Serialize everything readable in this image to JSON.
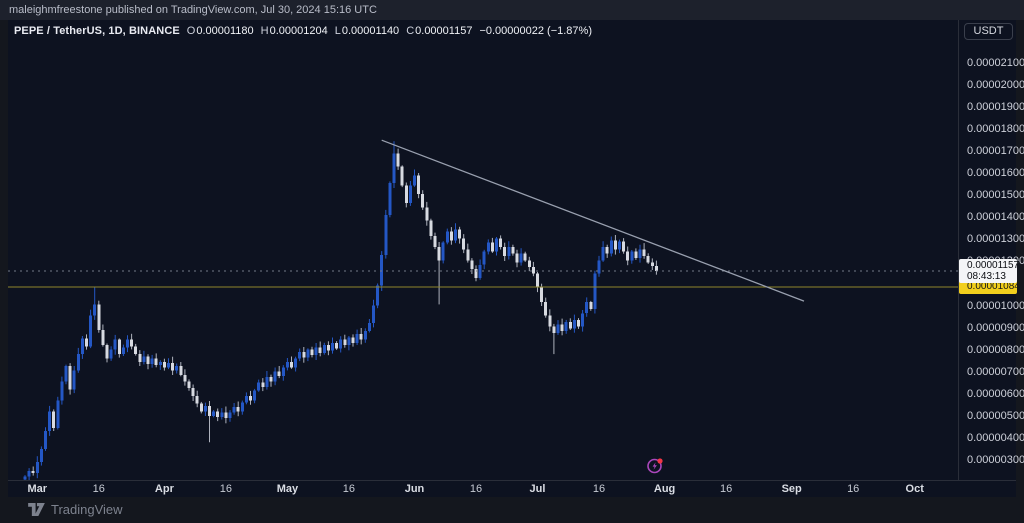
{
  "top_bar": {
    "attribution": "maleighmfreestone published on TradingView.com, Jul 30, 2024 15:16 UTC"
  },
  "header": {
    "symbol_title": "PEPE / TetherUS, 1D, BINANCE",
    "fields": [
      {
        "label": "O",
        "value": "0.00001180"
      },
      {
        "label": "H",
        "value": "0.00001204"
      },
      {
        "label": "L",
        "value": "0.00001140"
      },
      {
        "label": "C",
        "value": "0.00001157"
      }
    ],
    "change": "−0.00000022 (−1.87%)"
  },
  "price_axis": {
    "currency_button": "USDT",
    "ticks": [
      {
        "p": 2100,
        "label": "0.00002100"
      },
      {
        "p": 2000,
        "label": "0.00002000"
      },
      {
        "p": 1900,
        "label": "0.00001900"
      },
      {
        "p": 1800,
        "label": "0.00001800"
      },
      {
        "p": 1700,
        "label": "0.00001700"
      },
      {
        "p": 1600,
        "label": "0.00001600"
      },
      {
        "p": 1500,
        "label": "0.00001500"
      },
      {
        "p": 1400,
        "label": "0.00001400"
      },
      {
        "p": 1300,
        "label": "0.00001300"
      },
      {
        "p": 1200,
        "label": "0.00001200"
      },
      {
        "p": 1000,
        "label": "0.00001000"
      },
      {
        "p": 900,
        "label": "0.00000900"
      },
      {
        "p": 800,
        "label": "0.00000800"
      },
      {
        "p": 700,
        "label": "0.00000700"
      },
      {
        "p": 600,
        "label": "0.00000600"
      },
      {
        "p": 500,
        "label": "0.00000500"
      },
      {
        "p": 400,
        "label": "0.00000400"
      },
      {
        "p": 300,
        "label": "0.00000300"
      }
    ],
    "last_price_label": {
      "price": "0.00001157",
      "countdown": "08:43:13"
    },
    "alert_label": "0.00001084"
  },
  "time_axis": {
    "ticks": [
      {
        "label": "Mar",
        "day": 3,
        "month": true
      },
      {
        "label": "16",
        "day": 18,
        "month": false
      },
      {
        "label": "Apr",
        "day": 34,
        "month": true
      },
      {
        "label": "16",
        "day": 49,
        "month": false
      },
      {
        "label": "May",
        "day": 64,
        "month": true
      },
      {
        "label": "16",
        "day": 79,
        "month": false
      },
      {
        "label": "Jun",
        "day": 95,
        "month": true
      },
      {
        "label": "16",
        "day": 110,
        "month": false
      },
      {
        "label": "Jul",
        "day": 125,
        "month": true
      },
      {
        "label": "16",
        "day": 140,
        "month": false
      },
      {
        "label": "Aug",
        "day": 156,
        "month": true
      },
      {
        "label": "16",
        "day": 171,
        "month": false
      },
      {
        "label": "Sep",
        "day": 187,
        "month": true
      },
      {
        "label": "16",
        "day": 202,
        "month": false
      },
      {
        "label": "Oct",
        "day": 217,
        "month": true
      }
    ]
  },
  "footer": {
    "logo_label": "TradingView"
  },
  "chart_data": {
    "type": "candlestick",
    "title": "PEPE / TetherUS, 1D, BINANCE",
    "symbol": "PEPE/USDT",
    "exchange": "BINANCE",
    "interval": "1D",
    "price_scale_note": "prices in units of 1e-8 USDT",
    "start_date": "2024-02-27",
    "y_axis": {
      "tick_min": 300,
      "tick_max": 2100,
      "tick_step": 100,
      "visible_range_approx": [
        250,
        2150
      ]
    },
    "closes": [
      225,
      250,
      240,
      290,
      350,
      430,
      520,
      445,
      570,
      655,
      725,
      620,
      705,
      780,
      850,
      815,
      955,
      1005,
      890,
      820,
      760,
      800,
      845,
      780,
      810,
      845,
      815,
      780,
      745,
      770,
      735,
      760,
      730,
      745,
      720,
      740,
      705,
      725,
      685,
      655,
      625,
      590,
      555,
      520,
      545,
      500,
      520,
      495,
      515,
      490,
      515,
      540,
      520,
      560,
      590,
      570,
      615,
      650,
      630,
      675,
      655,
      700,
      680,
      720,
      745,
      720,
      760,
      790,
      765,
      800,
      775,
      810,
      785,
      820,
      795,
      830,
      805,
      845,
      820,
      855,
      830,
      870,
      845,
      885,
      920,
      1000,
      1090,
      1230,
      1410,
      1555,
      1690,
      1630,
      1545,
      1465,
      1545,
      1590,
      1505,
      1445,
      1385,
      1315,
      1265,
      1205,
      1285,
      1335,
      1295,
      1345,
      1305,
      1255,
      1205,
      1165,
      1125,
      1185,
      1245,
      1285,
      1245,
      1305,
      1265,
      1225,
      1265,
      1235,
      1195,
      1235,
      1205,
      1175,
      1145,
      1085,
      1015,
      955,
      905,
      875,
      915,
      885,
      925,
      895,
      935,
      905,
      965,
      1015,
      985,
      1145,
      1205,
      1265,
      1235,
      1295,
      1255,
      1290,
      1245,
      1205,
      1245,
      1215,
      1255,
      1225,
      1195,
      1179,
      1157
    ],
    "wick_overrides": [
      {
        "i": 17,
        "high": 1085
      },
      {
        "i": 45,
        "low": 380
      },
      {
        "i": 90,
        "high": 1745
      },
      {
        "i": 101,
        "low": 1005
      },
      {
        "i": 129,
        "low": 780
      }
    ],
    "last_candle": {
      "open": 1180,
      "high": 1204,
      "low": 1140,
      "close": 1157
    },
    "last_price": 1157,
    "horizontal_line_price": 1084,
    "trendline": {
      "from_day": 87,
      "from_price": 1750,
      "to_day": 190,
      "to_price": 1020
    },
    "colors": {
      "up": "#2457c5",
      "down": "#d7dae1",
      "down_wick": "#aeb2bd",
      "yellow_line": "#8f852c",
      "last_price_line": "#747a87",
      "trendline": "#99a0af",
      "alert_label_bg": "#f2cf1d",
      "last_label_bg": "#f4f5f7"
    }
  }
}
